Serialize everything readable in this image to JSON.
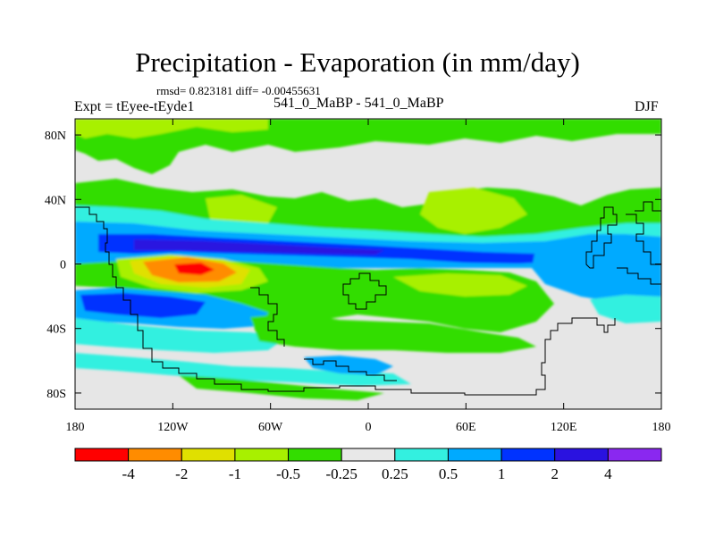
{
  "title": "Precipitation - Evaporation (in mm/day)",
  "stats": "rmsd= 0.823181 diff= -0.00455631",
  "subtitle_left": "Expt = tEyee-tEyde1",
  "subtitle_center": "541_0_MaBP - 541_0_MaBP",
  "subtitle_right": "DJF",
  "y_ticks": [
    {
      "label": "80N",
      "lat": 80
    },
    {
      "label": "40N",
      "lat": 40
    },
    {
      "label": "0",
      "lat": 0
    },
    {
      "label": "40S",
      "lat": -40
    },
    {
      "label": "80S",
      "lat": -80
    }
  ],
  "x_ticks": [
    {
      "label": "180",
      "lon": -180
    },
    {
      "label": "120W",
      "lon": -120
    },
    {
      "label": "60W",
      "lon": -60
    },
    {
      "label": "0",
      "lon": 0
    },
    {
      "label": "60E",
      "lon": 60
    },
    {
      "label": "120E",
      "lon": 120
    },
    {
      "label": "180",
      "lon": 180
    }
  ],
  "colorbar": {
    "colors": [
      "#ff0000",
      "#ff8c00",
      "#e0e000",
      "#a8f000",
      "#33dd00",
      "#e8e8e8",
      "#33f0e0",
      "#00aaff",
      "#0033ff",
      "#2a12e0",
      "#8a28f0"
    ],
    "labels": [
      "-4",
      "-2",
      "-1",
      "-0.5",
      "-0.25",
      "0.25",
      "0.5",
      "1",
      "2",
      "4"
    ]
  },
  "colors": {
    "land_outline": "#000000",
    "background": "#e6e6e6"
  }
}
